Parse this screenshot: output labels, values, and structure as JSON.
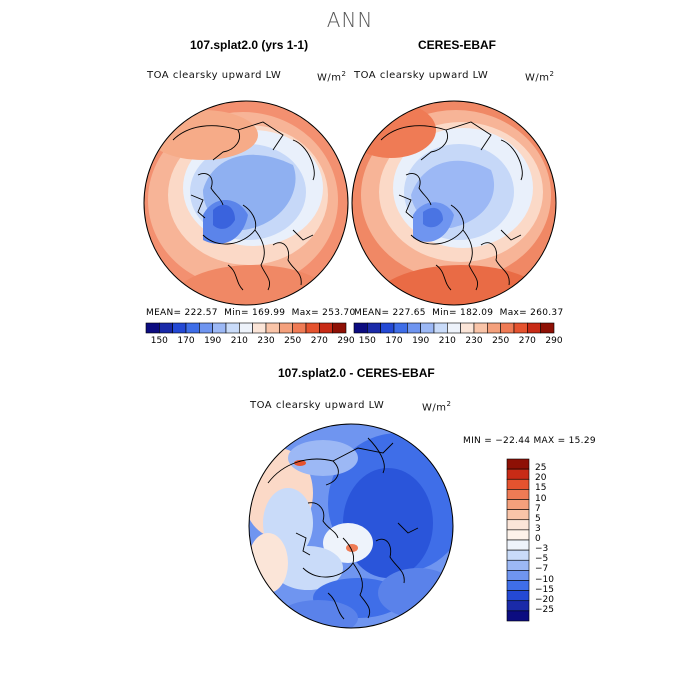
{
  "figure": {
    "title": "ANN"
  },
  "panels": [
    {
      "case": "107.splat2.0 (yrs 1-1)",
      "variable": "TOA clearsky upward LW",
      "units": "W/m",
      "units_exp": "2",
      "stats": {
        "mean": "MEAN= 222.57",
        "min": "Min= 169.99",
        "max": "Max= 253.70"
      }
    },
    {
      "case": "CERES-EBAF",
      "variable": "TOA clearsky upward LW",
      "units": "W/m",
      "units_exp": "2",
      "stats": {
        "mean": "MEAN= 227.65",
        "min": "Min= 182.09",
        "max": "Max= 260.37"
      }
    }
  ],
  "colorbar_top": {
    "labels": [
      "150",
      "170",
      "190",
      "210",
      "230",
      "250",
      "270",
      "290"
    ],
    "colors": [
      "#0c0c80",
      "#1a2aa8",
      "#2449d4",
      "#3f6ee8",
      "#6f95f0",
      "#9cb8f5",
      "#c9dbf9",
      "#eef3fb",
      "#fbe5d8",
      "#f9c4a8",
      "#f4a07c",
      "#ef7b55",
      "#e5532f",
      "#c82b16",
      "#8e1005"
    ]
  },
  "diff_panel": {
    "title": "107.splat2.0 - CERES-EBAF",
    "variable": "TOA clearsky upward LW",
    "units": "W/m",
    "units_exp": "2",
    "stats": "MIN = −22.44  MAX =  15.29",
    "colorbar": {
      "labels": [
        "25",
        "20",
        "15",
        "10",
        "7",
        "5",
        "3",
        "0",
        "−3",
        "−5",
        "−7",
        "−10",
        "−15",
        "−20",
        "−25"
      ],
      "colors": [
        "#8e1005",
        "#c82b16",
        "#e5532f",
        "#ef7b55",
        "#f4a07c",
        "#f9c4a8",
        "#fbe5d8",
        "#fdf2ea",
        "#eef3fb",
        "#c9dbf9",
        "#9cb8f5",
        "#6f95f0",
        "#3f6ee8",
        "#2449d4",
        "#1a2aa8",
        "#0c0c80"
      ]
    }
  }
}
